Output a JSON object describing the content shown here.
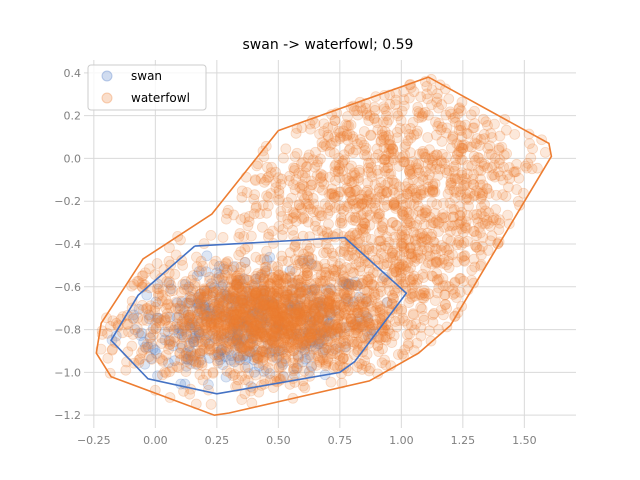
{
  "chart_data": {
    "type": "scatter",
    "title": "swan -> waterfowl; 0.59",
    "xlabel": "",
    "ylabel": "",
    "xlim": [
      -0.29,
      1.71
    ],
    "ylim": [
      -1.26,
      0.46
    ],
    "x_ticks": [
      -0.25,
      0.0,
      0.25,
      0.5,
      0.75,
      1.0,
      1.25,
      1.5
    ],
    "x_tick_labels": [
      "−0.25",
      "0.00",
      "0.25",
      "0.50",
      "0.75",
      "1.00",
      "1.25",
      "1.50"
    ],
    "y_ticks": [
      0.4,
      0.2,
      0.0,
      -0.2,
      -0.4,
      -0.6,
      -0.8,
      -1.0,
      -1.2
    ],
    "y_tick_labels": [
      "0.4",
      "0.2",
      "0.0",
      "−0.2",
      "−0.4",
      "−0.6",
      "−0.8",
      "−1.0",
      "−1.2"
    ],
    "grid": true,
    "legend_position": "top-left",
    "series": [
      {
        "name": "swan",
        "color": "#4472c4",
        "point_alpha": 0.2,
        "hull": [
          [
            0.16,
            -0.41
          ],
          [
            0.77,
            -0.37
          ],
          [
            1.02,
            -0.63
          ],
          [
            0.81,
            -0.95
          ],
          [
            0.75,
            -1.0
          ],
          [
            0.25,
            -1.1
          ],
          [
            -0.03,
            -1.03
          ],
          [
            -0.18,
            -0.85
          ],
          [
            -0.07,
            -0.64
          ],
          [
            0.16,
            -0.41
          ]
        ],
        "cluster": {
          "center": [
            0.38,
            -0.78
          ],
          "spread": [
            0.27,
            0.13
          ],
          "count": 420
        }
      },
      {
        "name": "waterfowl",
        "color": "#ed7d31",
        "point_alpha": 0.2,
        "hull": [
          [
            0.5,
            0.13
          ],
          [
            1.11,
            0.38
          ],
          [
            1.6,
            0.07
          ],
          [
            1.61,
            0.01
          ],
          [
            1.2,
            -0.78
          ],
          [
            1.07,
            -0.91
          ],
          [
            0.87,
            -1.04
          ],
          [
            0.3,
            -1.19
          ],
          [
            0.24,
            -1.2
          ],
          [
            -0.18,
            -1.02
          ],
          [
            -0.24,
            -0.91
          ],
          [
            -0.22,
            -0.77
          ],
          [
            -0.05,
            -0.47
          ],
          [
            0.23,
            -0.26
          ],
          [
            0.5,
            0.13
          ]
        ],
        "clusters": [
          {
            "center": [
              0.47,
              -0.75
            ],
            "spread": [
              0.26,
              0.12
            ],
            "count": 1400
          },
          {
            "center": [
              0.95,
              -0.2
            ],
            "spread": [
              0.33,
              0.33
            ],
            "count": 1100
          }
        ]
      }
    ]
  }
}
